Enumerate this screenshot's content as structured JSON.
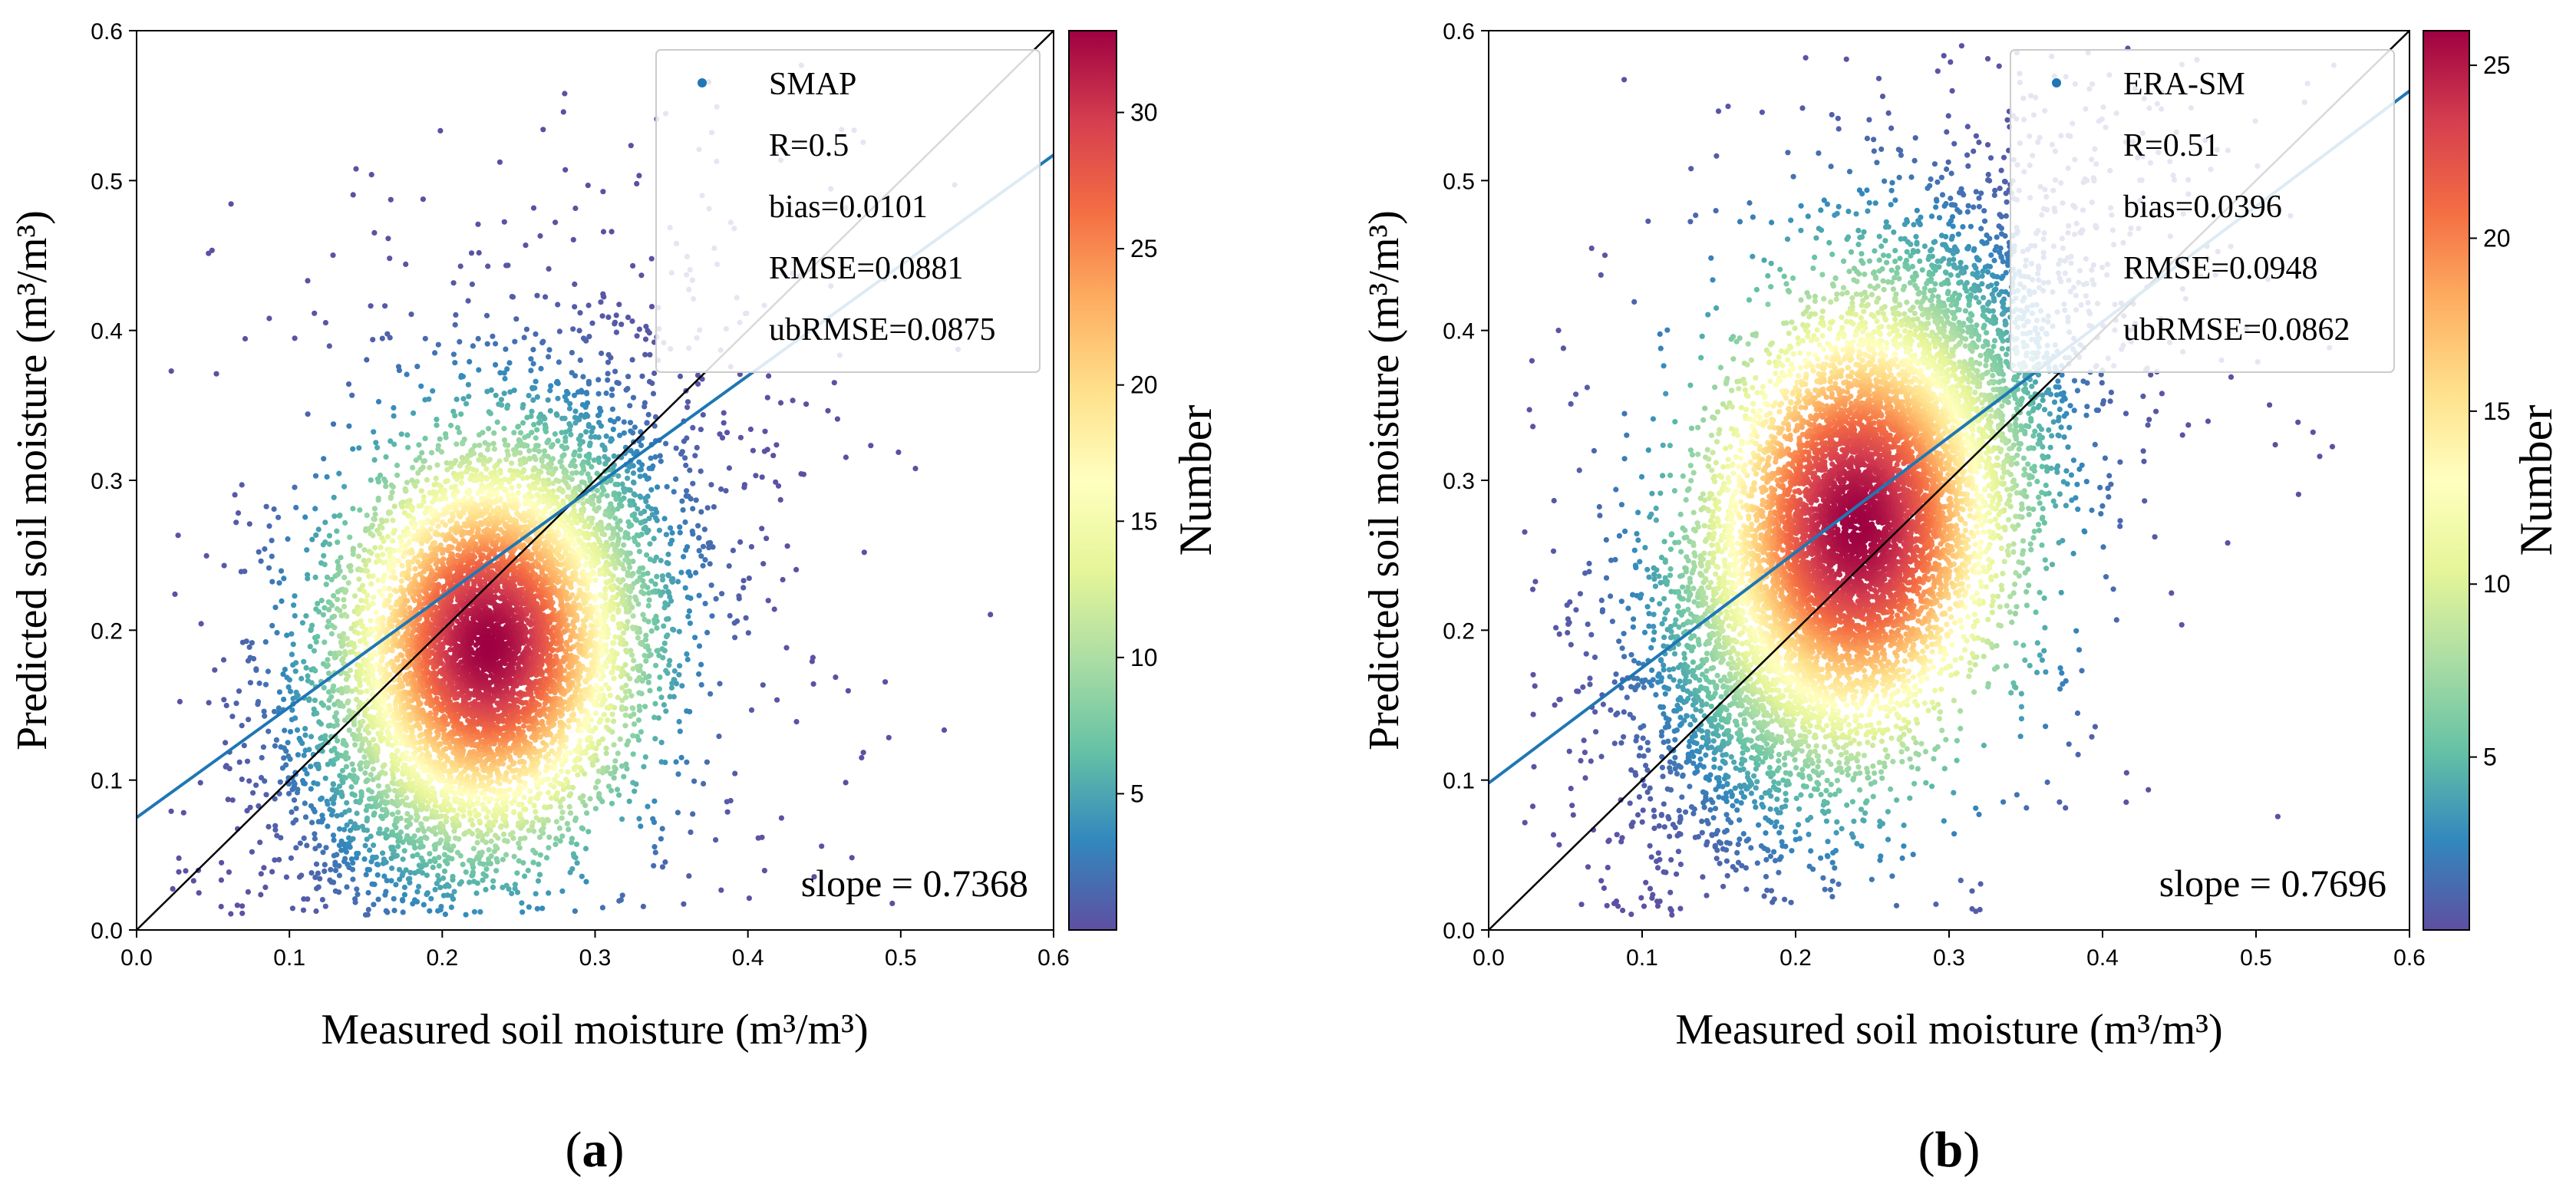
{
  "figure": {
    "panels": [
      {
        "label_open": "(",
        "label_letter": "a",
        "label_close": ")"
      },
      {
        "label_open": "(",
        "label_letter": "b",
        "label_close": ")"
      }
    ]
  },
  "chart_data": [
    {
      "type": "scatter",
      "panel": "a",
      "xlabel": "Measured soil moisture (m³/m³)",
      "ylabel": "Predicted soil moisture (m³/m³)",
      "xlim": [
        0.0,
        0.6
      ],
      "ylim": [
        0.0,
        0.6
      ],
      "xticks": [
        "0.0",
        "0.1",
        "0.2",
        "0.3",
        "0.4",
        "0.5",
        "0.6"
      ],
      "yticks": [
        "0.0",
        "0.1",
        "0.2",
        "0.3",
        "0.4",
        "0.5",
        "0.6"
      ],
      "legend": {
        "position": "top-right",
        "series_name": "SMAP",
        "lines": [
          "R=0.5",
          "bias=0.0101",
          "RMSE=0.0881",
          "ubRMSE=0.0875"
        ]
      },
      "slope_text": "slope = 0.7368",
      "regression": {
        "slope": 0.7368,
        "intercept": 0.075
      },
      "one_to_one": {
        "x": [
          0.0,
          0.6
        ],
        "y": [
          0.0,
          0.6
        ]
      },
      "density": {
        "center": [
          0.23,
          0.19
        ],
        "spread": [
          0.055,
          0.075
        ],
        "correlation": 0.35,
        "core_fraction": 0.9,
        "point_count": 9000
      },
      "colorbar": {
        "label": "Number",
        "range": [
          0,
          33
        ],
        "ticks": [
          "5",
          "10",
          "15",
          "20",
          "25",
          "30"
        ],
        "tick_values": [
          5,
          10,
          15,
          20,
          25,
          30
        ]
      }
    },
    {
      "type": "scatter",
      "panel": "b",
      "xlabel": "Measured soil moisture (m³/m³)",
      "ylabel": "Predicted soil moisture (m³/m³)",
      "xlim": [
        0.0,
        0.6
      ],
      "ylim": [
        0.0,
        0.6
      ],
      "xticks": [
        "0.0",
        "0.1",
        "0.2",
        "0.3",
        "0.4",
        "0.5",
        "0.6"
      ],
      "yticks": [
        "0.0",
        "0.1",
        "0.2",
        "0.3",
        "0.4",
        "0.5",
        "0.6"
      ],
      "legend": {
        "position": "top-right",
        "series_name": "ERA-SM",
        "lines": [
          "R=0.51",
          "bias=0.0396",
          "RMSE=0.0948",
          "ubRMSE=0.0862"
        ]
      },
      "slope_text": "slope = 0.7696",
      "regression": {
        "slope": 0.7696,
        "intercept": 0.098
      },
      "one_to_one": {
        "x": [
          0.0,
          0.6
        ],
        "y": [
          0.0,
          0.6
        ]
      },
      "density": {
        "center": [
          0.24,
          0.27
        ],
        "spread": [
          0.06,
          0.09
        ],
        "correlation": 0.55,
        "core_fraction": 0.9,
        "point_count": 11000
      },
      "colorbar": {
        "label": "Number",
        "range": [
          0,
          26
        ],
        "ticks": [
          "5",
          "10",
          "15",
          "20",
          "25"
        ],
        "tick_values": [
          5,
          10,
          15,
          20,
          25
        ]
      }
    }
  ],
  "colors": {
    "regression_line": "#1f77b4",
    "identity_line": "#000000",
    "legend_marker": "#1f77b4",
    "legend_border": "#cccccc",
    "spectral_r": [
      "#5e4fa2",
      "#3288bd",
      "#66c2a5",
      "#abdda4",
      "#e6f598",
      "#ffffbf",
      "#fee08b",
      "#fdae61",
      "#f46d43",
      "#d53e4f",
      "#9e0142"
    ]
  }
}
